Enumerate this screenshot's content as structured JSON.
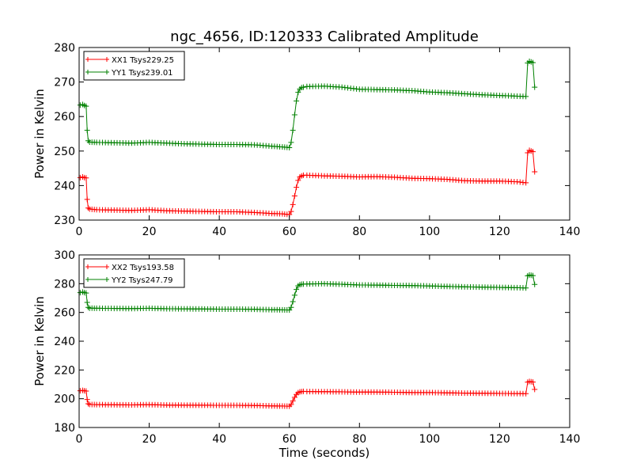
{
  "figure": {
    "title": "ngc_4656, ID:120333 Calibrated Amplitude"
  },
  "chart_data": [
    {
      "type": "line",
      "title": "ngc_4656, ID:120333 Calibrated Amplitude",
      "xlabel": "",
      "ylabel": "Power in Kelvin",
      "xlim": [
        0,
        140
      ],
      "ylim": [
        230,
        280
      ],
      "xticks": [
        0,
        20,
        40,
        60,
        80,
        100,
        120,
        140
      ],
      "yticks": [
        230,
        240,
        250,
        260,
        270,
        280
      ],
      "grid": false,
      "legend_position": "upper left",
      "marker": "+",
      "series": [
        {
          "name": "XX1 Tsys229.25",
          "color": "#ff0000",
          "x": [
            0.3,
            1.0,
            1.5,
            2.0,
            2.3,
            2.6,
            3.0,
            5,
            10,
            15,
            20,
            25,
            30,
            35,
            40,
            45,
            50,
            55,
            58,
            60,
            60.5,
            61,
            61.5,
            62,
            62.5,
            63,
            63.5,
            64,
            65,
            70,
            75,
            80,
            85,
            90,
            95,
            100,
            105,
            110,
            115,
            120,
            125,
            127.5,
            128,
            128.5,
            129,
            129.5,
            130
          ],
          "y": [
            242.3,
            242.5,
            242.3,
            242.2,
            236,
            233.5,
            233.2,
            233,
            232.9,
            232.8,
            233,
            232.7,
            232.6,
            232.5,
            232.4,
            232.4,
            232.2,
            231.9,
            231.8,
            231.6,
            232.5,
            234.5,
            237,
            239.5,
            241.5,
            242.5,
            242.8,
            243,
            243,
            242.8,
            242.7,
            242.5,
            242.6,
            242.4,
            242.1,
            242,
            241.8,
            241.4,
            241.3,
            241.3,
            241.1,
            240.8,
            249.5,
            250.2,
            250,
            249.8,
            244
          ]
        },
        {
          "name": "YY1 Tsys239.01",
          "color": "#008000",
          "x": [
            0.3,
            1.0,
            1.5,
            2.0,
            2.3,
            2.6,
            3.0,
            5,
            10,
            15,
            20,
            25,
            30,
            35,
            40,
            45,
            50,
            55,
            58,
            60,
            60.5,
            61,
            61.5,
            62,
            62.5,
            63,
            63.5,
            64,
            65,
            70,
            75,
            80,
            85,
            90,
            95,
            100,
            105,
            110,
            115,
            120,
            125,
            127.5,
            128,
            128.5,
            129,
            129.5,
            130
          ],
          "y": [
            263.3,
            263.5,
            263.2,
            263,
            256,
            253,
            252.6,
            252.5,
            252.4,
            252.3,
            252.5,
            252.3,
            252.1,
            252,
            251.9,
            251.9,
            251.8,
            251.4,
            251.2,
            251,
            252.5,
            256,
            260.5,
            264.5,
            267,
            268,
            268.4,
            268.5,
            268.7,
            268.8,
            268.5,
            267.9,
            267.8,
            267.7,
            267.5,
            267.1,
            266.9,
            266.6,
            266.3,
            266.1,
            265.9,
            265.8,
            275.5,
            276,
            275.8,
            275.6,
            268.5
          ]
        }
      ]
    },
    {
      "type": "line",
      "title": "",
      "xlabel": "Time (seconds)",
      "ylabel": "Power in Kelvin",
      "xlim": [
        0,
        140
      ],
      "ylim": [
        180,
        300
      ],
      "xticks": [
        0,
        20,
        40,
        60,
        80,
        100,
        120,
        140
      ],
      "yticks": [
        180,
        200,
        220,
        240,
        260,
        280,
        300
      ],
      "grid": false,
      "legend_position": "upper left",
      "marker": "+",
      "series": [
        {
          "name": "XX2 Tsys193.58",
          "color": "#ff0000",
          "x": [
            0.3,
            1.0,
            1.5,
            2.0,
            2.3,
            2.6,
            3.0,
            5,
            10,
            15,
            20,
            25,
            30,
            35,
            40,
            45,
            50,
            55,
            58,
            60,
            60.5,
            61,
            61.5,
            62,
            62.5,
            63,
            63.5,
            64,
            65,
            70,
            75,
            80,
            85,
            90,
            95,
            100,
            105,
            110,
            115,
            120,
            125,
            127.5,
            128,
            128.5,
            129,
            129.5,
            130
          ],
          "y": [
            205.5,
            205.8,
            205.5,
            205.3,
            199.5,
            196.5,
            196,
            195.9,
            195.8,
            195.7,
            195.9,
            195.6,
            195.5,
            195.5,
            195.4,
            195.4,
            195.3,
            195,
            194.9,
            194.8,
            196,
            198.5,
            201,
            203,
            204.2,
            204.8,
            205,
            205.1,
            205,
            204.9,
            204.8,
            204.6,
            204.6,
            204.5,
            204.3,
            204.3,
            204.1,
            203.9,
            203.8,
            203.7,
            203.6,
            203.5,
            211.5,
            212,
            211.8,
            211.6,
            206.5
          ]
        },
        {
          "name": "YY2 Tsys247.79",
          "color": "#008000",
          "x": [
            0.3,
            1.0,
            1.5,
            2.0,
            2.3,
            2.6,
            3.0,
            5,
            10,
            15,
            20,
            25,
            30,
            35,
            40,
            45,
            50,
            55,
            58,
            60,
            60.5,
            61,
            61.5,
            62,
            62.5,
            63,
            63.5,
            64,
            65,
            70,
            75,
            80,
            85,
            90,
            95,
            100,
            105,
            110,
            115,
            120,
            125,
            127.5,
            128,
            128.5,
            129,
            129.5,
            130
          ],
          "y": [
            273.8,
            274.2,
            273.8,
            273.5,
            267,
            263.5,
            263,
            262.9,
            262.8,
            262.7,
            262.9,
            262.6,
            262.5,
            262.4,
            262.3,
            262.3,
            262.2,
            261.9,
            261.8,
            261.7,
            263.5,
            267.5,
            272,
            276,
            278.5,
            279.3,
            279.6,
            279.7,
            279.8,
            280,
            279.6,
            279.1,
            279,
            278.8,
            278.7,
            278.4,
            278.1,
            277.8,
            277.6,
            277.4,
            277.2,
            277,
            285.5,
            286,
            285.8,
            285.6,
            279.5
          ]
        }
      ]
    }
  ]
}
